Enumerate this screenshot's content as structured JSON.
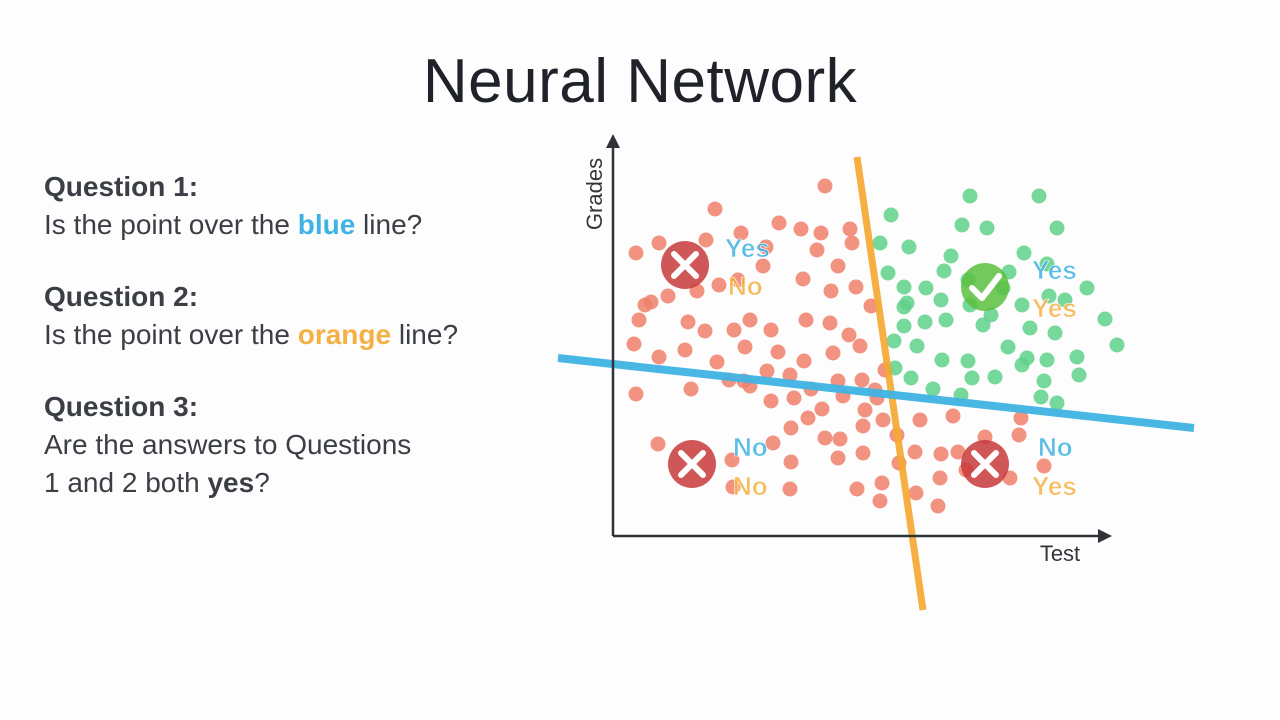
{
  "title": "Neural Network",
  "questions": [
    {
      "head": "Question 1:",
      "pre": "Is the point over the ",
      "highlight": "blue",
      "post": " line?"
    },
    {
      "head": "Question 2:",
      "pre": "Is the point over the ",
      "highlight": "orange",
      "post": " line?"
    },
    {
      "head": "Question 3:",
      "line1": "Are the answers to Questions",
      "pre": "1 and 2 both ",
      "highlight": "yes",
      "post": "?"
    }
  ],
  "axes": {
    "x_label": "Test",
    "y_label": "Grades"
  },
  "quadrants": {
    "top_left": {
      "q1": "Yes",
      "q2": "No",
      "result": "cross"
    },
    "top_right": {
      "q1": "Yes",
      "q2": "Yes",
      "result": "check"
    },
    "bottom_left": {
      "q1": "No",
      "q2": "No",
      "result": "cross"
    },
    "bottom_right": {
      "q1": "No",
      "q2": "Yes",
      "result": "cross"
    }
  },
  "colors": {
    "blue_line": "#3fb3e3",
    "orange_line": "#f5a833",
    "red_points": "#f0806c",
    "green_points": "#5fd18a",
    "cross_badge": "#c8393a",
    "check_badge": "#5cbf3f"
  }
}
